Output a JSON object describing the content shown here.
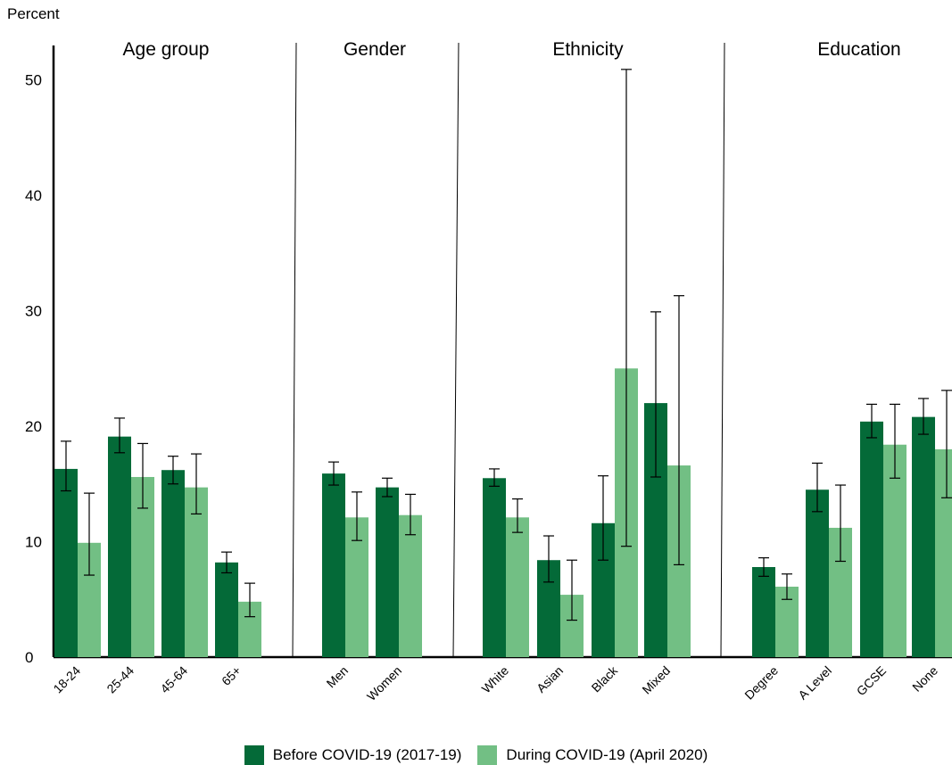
{
  "chart_data": {
    "type": "bar",
    "ylabel": "Percent",
    "ylim": [
      0,
      53
    ],
    "yticks": [
      0,
      10,
      20,
      30,
      40,
      50
    ],
    "grid": false,
    "legend_position": "bottom",
    "colors": {
      "before": "#046a38",
      "during": "#72bf84"
    },
    "series": [
      {
        "name": "Before COVID-19 (2017-19)"
      },
      {
        "name": "During COVID-19 (April 2020)"
      }
    ],
    "groups": [
      {
        "title": "Age group",
        "categories": [
          {
            "label": "18-24",
            "before": 16.3,
            "before_err": [
              14.4,
              18.7
            ],
            "during": 9.9,
            "during_err": [
              7.1,
              14.2
            ]
          },
          {
            "label": "25-44",
            "before": 19.1,
            "before_err": [
              17.7,
              20.7
            ],
            "during": 15.6,
            "during_err": [
              12.9,
              18.5
            ]
          },
          {
            "label": "45-64",
            "before": 16.2,
            "before_err": [
              15.0,
              17.4
            ],
            "during": 14.7,
            "during_err": [
              12.4,
              17.6
            ]
          },
          {
            "label": "65+",
            "before": 8.2,
            "before_err": [
              7.3,
              9.1
            ],
            "during": 4.8,
            "during_err": [
              3.5,
              6.4
            ]
          }
        ]
      },
      {
        "title": "Gender",
        "categories": [
          {
            "label": "Men",
            "before": 15.9,
            "before_err": [
              14.9,
              16.9
            ],
            "during": 12.1,
            "during_err": [
              10.1,
              14.3
            ]
          },
          {
            "label": "Women",
            "before": 14.7,
            "before_err": [
              13.9,
              15.5
            ],
            "during": 12.3,
            "during_err": [
              10.6,
              14.1
            ]
          }
        ]
      },
      {
        "title": "Ethnicity",
        "categories": [
          {
            "label": "White",
            "before": 15.5,
            "before_err": [
              14.8,
              16.3
            ],
            "during": 12.1,
            "during_err": [
              10.8,
              13.7
            ]
          },
          {
            "label": "Asian",
            "before": 8.4,
            "before_err": [
              6.5,
              10.5
            ],
            "during": 5.4,
            "during_err": [
              3.2,
              8.4
            ]
          },
          {
            "label": "Black",
            "before": 11.6,
            "before_err": [
              8.4,
              15.7
            ],
            "during": 25.0,
            "during_err": [
              9.6,
              50.9
            ]
          },
          {
            "label": "Mixed",
            "before": 22.0,
            "before_err": [
              15.6,
              29.9
            ],
            "during": 16.6,
            "during_err": [
              8.0,
              31.3
            ]
          }
        ]
      },
      {
        "title": "Education",
        "categories": [
          {
            "label": "Degree",
            "before": 7.8,
            "before_err": [
              7.0,
              8.6
            ],
            "during": 6.1,
            "during_err": [
              5.0,
              7.2
            ]
          },
          {
            "label": "A Level",
            "before": 14.5,
            "before_err": [
              12.6,
              16.8
            ],
            "during": 11.2,
            "during_err": [
              8.3,
              14.9
            ]
          },
          {
            "label": "GCSE",
            "before": 20.4,
            "before_err": [
              19.0,
              21.9
            ],
            "during": 18.4,
            "during_err": [
              15.5,
              21.9
            ]
          },
          {
            "label": "None",
            "before": 20.8,
            "before_err": [
              19.3,
              22.4
            ],
            "during": 18.0,
            "during_err": [
              13.8,
              23.1
            ]
          }
        ]
      }
    ]
  }
}
